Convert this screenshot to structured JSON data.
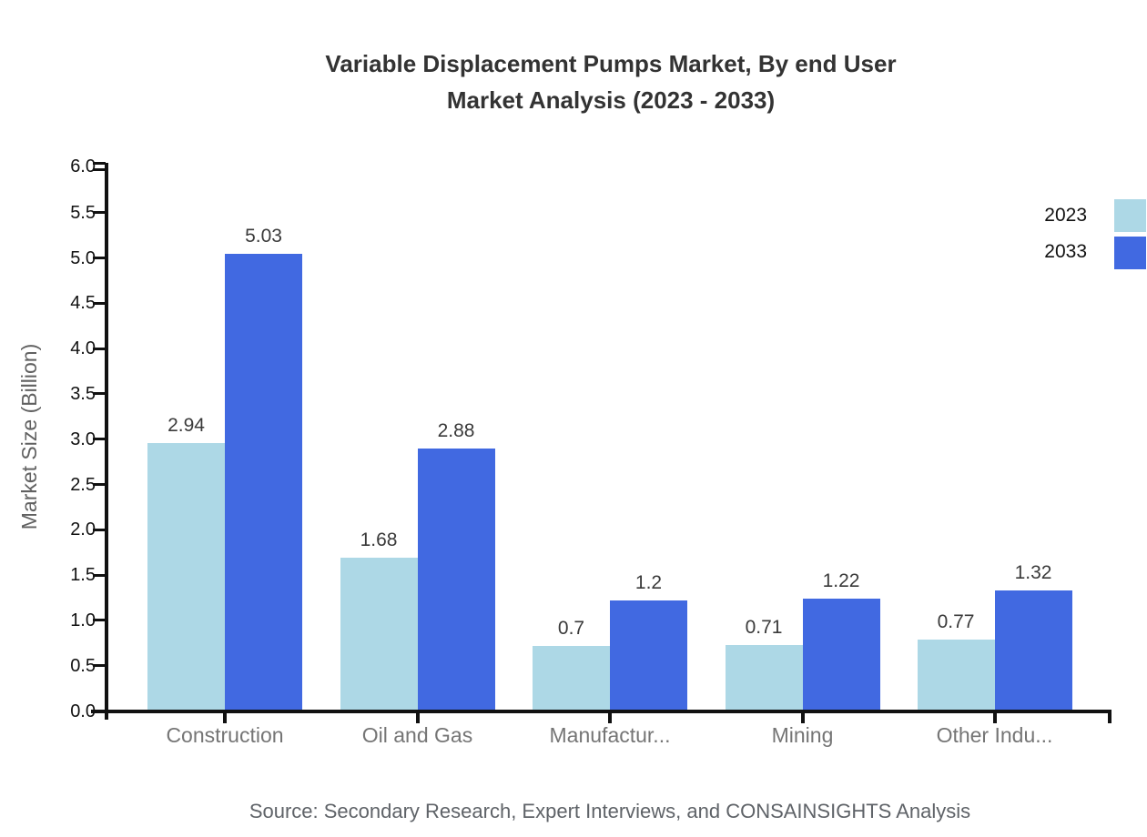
{
  "chart_data": {
    "type": "bar",
    "title": "Variable Displacement Pumps Market, By end User Market Analysis (2023 - 2033)",
    "title_lines": [
      "Variable Displacement Pumps Market, By end User",
      "Market Analysis (2023 - 2033)"
    ],
    "categories": [
      "Construction",
      "Oil and Gas",
      "Manufactur...",
      "Mining",
      "Other Indu..."
    ],
    "series": [
      {
        "name": "2023",
        "color": "#ADD8E6",
        "values": [
          2.94,
          1.68,
          0.7,
          0.71,
          0.77
        ],
        "value_labels": [
          "2.94",
          "1.68",
          "0.7",
          "0.71",
          "0.77"
        ]
      },
      {
        "name": "2033",
        "color": "#4169E1",
        "values": [
          5.03,
          2.88,
          1.2,
          1.22,
          1.32
        ],
        "value_labels": [
          "5.03",
          "2.88",
          "1.2",
          "1.22",
          "1.32"
        ]
      }
    ],
    "xlabel": "",
    "ylabel": "Market Size (Billion)",
    "ylim": [
      0.0,
      6.0
    ],
    "ytick_step": 0.5,
    "ytick_labels": [
      "0.0",
      "0.5",
      "1.0",
      "1.5",
      "2.0",
      "2.5",
      "3.0",
      "3.5",
      "4.0",
      "4.5",
      "5.0",
      "5.5",
      "6.0"
    ],
    "grid": false,
    "legend_position": "top-right",
    "source_note": "Source: Secondary Research, Expert Interviews, and CONSAINSIGHTS Analysis",
    "colors": {
      "series_2023": "#ADD8E6",
      "series_2033": "#4169E1",
      "axis": "#111111",
      "title_text": "#333333",
      "y_tick_label": "#111111",
      "category_label": "#757575",
      "value_label": "#3a3a3a",
      "legend_text": "#111111",
      "axis_title": "#616161",
      "source_text": "#5f6368"
    }
  }
}
